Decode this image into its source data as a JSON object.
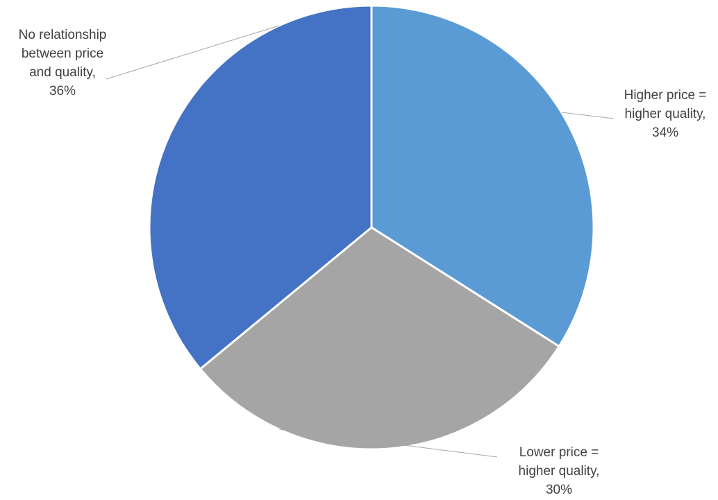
{
  "chart_data": {
    "type": "pie",
    "start_angle_deg": 0,
    "direction": "clockwise",
    "slices": [
      {
        "label": "Higher price = higher quality",
        "label_lines": [
          "Higher price =",
          "higher quality,",
          "34%"
        ],
        "value": 34,
        "color": "#5b9bd5"
      },
      {
        "label": "Lower price = higher quality",
        "label_lines": [
          "Lower price =",
          "higher quality,",
          "30%"
        ],
        "value": 30,
        "color": "#a5a5a5"
      },
      {
        "label": "No relationship between price and quality",
        "label_lines": [
          "No relationship",
          "between price",
          "and quality,",
          "36%"
        ],
        "value": 36,
        "color": "#4472c4"
      }
    ],
    "legend": "none",
    "data_labels": "outside-with-leader-lines"
  }
}
